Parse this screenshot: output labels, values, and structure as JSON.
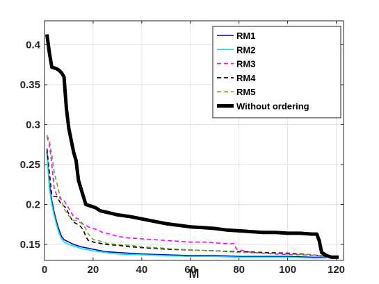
{
  "chart_data": {
    "type": "line",
    "title": "",
    "xlabel": "M",
    "ylabel": "",
    "xlim": [
      0,
      123
    ],
    "ylim": [
      0.13,
      0.43
    ],
    "xticks": [
      0,
      20,
      40,
      60,
      80,
      100,
      120
    ],
    "yticks": [
      0.15,
      0.2,
      0.25,
      0.3,
      0.35,
      0.4
    ],
    "ytick_labels": [
      "0.15",
      "0.2",
      "0.25",
      "0.3",
      "0.35",
      "0.4"
    ],
    "grid": true,
    "legend_placement": "top-right",
    "series": [
      {
        "name": "RM1",
        "color": "#0000cc",
        "dash": "solid",
        "width": "normal",
        "points": [
          [
            1,
            0.266
          ],
          [
            2,
            0.225
          ],
          [
            3,
            0.205
          ],
          [
            4,
            0.19
          ],
          [
            5,
            0.178
          ],
          [
            6,
            0.168
          ],
          [
            7,
            0.16
          ],
          [
            8,
            0.156
          ],
          [
            10,
            0.153
          ],
          [
            12,
            0.15
          ],
          [
            15,
            0.147
          ],
          [
            20,
            0.144
          ],
          [
            25,
            0.141
          ],
          [
            30,
            0.14
          ],
          [
            40,
            0.138
          ],
          [
            50,
            0.137
          ],
          [
            60,
            0.136
          ],
          [
            70,
            0.136
          ],
          [
            80,
            0.135
          ],
          [
            90,
            0.135
          ],
          [
            100,
            0.135
          ],
          [
            110,
            0.134
          ],
          [
            116,
            0.134
          ]
        ]
      },
      {
        "name": "RM2",
        "color": "#00e5e5",
        "dash": "solid",
        "width": "normal",
        "points": [
          [
            1,
            0.262
          ],
          [
            2,
            0.22
          ],
          [
            3,
            0.2
          ],
          [
            4,
            0.186
          ],
          [
            5,
            0.174
          ],
          [
            6,
            0.164
          ],
          [
            7,
            0.157
          ],
          [
            8,
            0.153
          ],
          [
            10,
            0.15
          ],
          [
            12,
            0.148
          ],
          [
            15,
            0.145
          ],
          [
            20,
            0.142
          ],
          [
            25,
            0.14
          ],
          [
            30,
            0.138
          ],
          [
            40,
            0.137
          ],
          [
            50,
            0.136
          ],
          [
            60,
            0.135
          ],
          [
            70,
            0.135
          ],
          [
            80,
            0.134
          ],
          [
            90,
            0.134
          ],
          [
            100,
            0.134
          ],
          [
            110,
            0.133
          ],
          [
            116,
            0.133
          ]
        ]
      },
      {
        "name": "RM3",
        "color": "#ff00ff",
        "dash": "dashed",
        "width": "normal",
        "points": [
          [
            1,
            0.285
          ],
          [
            2,
            0.275
          ],
          [
            3,
            0.25
          ],
          [
            4,
            0.22
          ],
          [
            5,
            0.212
          ],
          [
            6,
            0.21
          ],
          [
            7,
            0.205
          ],
          [
            8,
            0.205
          ],
          [
            9,
            0.2
          ],
          [
            10,
            0.195
          ],
          [
            11,
            0.19
          ],
          [
            12,
            0.185
          ],
          [
            13,
            0.183
          ],
          [
            14,
            0.182
          ],
          [
            15,
            0.178
          ],
          [
            16,
            0.175
          ],
          [
            17,
            0.174
          ],
          [
            18,
            0.172
          ],
          [
            20,
            0.17
          ],
          [
            22,
            0.168
          ],
          [
            24,
            0.165
          ],
          [
            27,
            0.163
          ],
          [
            30,
            0.16
          ],
          [
            35,
            0.158
          ],
          [
            40,
            0.157
          ],
          [
            45,
            0.156
          ],
          [
            50,
            0.155
          ],
          [
            55,
            0.154
          ],
          [
            60,
            0.153
          ],
          [
            65,
            0.153
          ],
          [
            70,
            0.152
          ],
          [
            75,
            0.151
          ],
          [
            78,
            0.151
          ],
          [
            79,
            0.144
          ],
          [
            85,
            0.14
          ],
          [
            95,
            0.138
          ],
          [
            105,
            0.137
          ],
          [
            113,
            0.136
          ],
          [
            116,
            0.134
          ]
        ]
      },
      {
        "name": "RM4",
        "color": "#000000",
        "dash": "dashed",
        "width": "normal",
        "points": [
          [
            1,
            0.27
          ],
          [
            2,
            0.24
          ],
          [
            3,
            0.212
          ],
          [
            4,
            0.21
          ],
          [
            5,
            0.21
          ],
          [
            6,
            0.205
          ],
          [
            7,
            0.2
          ],
          [
            8,
            0.198
          ],
          [
            9,
            0.195
          ],
          [
            10,
            0.188
          ],
          [
            11,
            0.182
          ],
          [
            12,
            0.178
          ],
          [
            13,
            0.176
          ],
          [
            14,
            0.175
          ],
          [
            15,
            0.172
          ],
          [
            16,
            0.168
          ],
          [
            17,
            0.16
          ],
          [
            18,
            0.155
          ],
          [
            19,
            0.155
          ],
          [
            20,
            0.153
          ],
          [
            22,
            0.152
          ],
          [
            25,
            0.15
          ],
          [
            30,
            0.149
          ],
          [
            35,
            0.147
          ],
          [
            40,
            0.146
          ],
          [
            50,
            0.144
          ],
          [
            60,
            0.143
          ],
          [
            70,
            0.142
          ],
          [
            80,
            0.141
          ],
          [
            90,
            0.14
          ],
          [
            100,
            0.139
          ],
          [
            110,
            0.137
          ],
          [
            116,
            0.135
          ]
        ]
      },
      {
        "name": "RM5",
        "color": "#66aa22",
        "dash": "dashed",
        "width": "normal",
        "points": [
          [
            1,
            0.287
          ],
          [
            2,
            0.28
          ],
          [
            3,
            0.262
          ],
          [
            4,
            0.24
          ],
          [
            5,
            0.228
          ],
          [
            6,
            0.215
          ],
          [
            7,
            0.205
          ],
          [
            8,
            0.195
          ],
          [
            9,
            0.19
          ],
          [
            10,
            0.186
          ],
          [
            11,
            0.182
          ],
          [
            12,
            0.18
          ],
          [
            13,
            0.18
          ],
          [
            14,
            0.178
          ],
          [
            15,
            0.177
          ],
          [
            16,
            0.174
          ],
          [
            17,
            0.17
          ],
          [
            18,
            0.163
          ],
          [
            19,
            0.16
          ],
          [
            20,
            0.156
          ],
          [
            22,
            0.155
          ],
          [
            24,
            0.153
          ],
          [
            26,
            0.151
          ],
          [
            30,
            0.15
          ],
          [
            35,
            0.149
          ],
          [
            40,
            0.147
          ],
          [
            50,
            0.145
          ],
          [
            60,
            0.143
          ],
          [
            70,
            0.142
          ],
          [
            80,
            0.14
          ],
          [
            90,
            0.139
          ],
          [
            100,
            0.138
          ],
          [
            110,
            0.137
          ],
          [
            116,
            0.134
          ]
        ]
      },
      {
        "name": "Without ordering",
        "color": "#000000",
        "dash": "solid",
        "width": "thick",
        "points": [
          [
            1,
            0.413
          ],
          [
            2,
            0.39
          ],
          [
            3,
            0.372
          ],
          [
            5,
            0.37
          ],
          [
            6,
            0.368
          ],
          [
            7,
            0.365
          ],
          [
            8,
            0.36
          ],
          [
            9,
            0.32
          ],
          [
            10,
            0.295
          ],
          [
            11,
            0.28
          ],
          [
            12,
            0.265
          ],
          [
            13,
            0.255
          ],
          [
            14,
            0.23
          ],
          [
            15,
            0.22
          ],
          [
            16,
            0.21
          ],
          [
            17,
            0.2
          ],
          [
            19,
            0.198
          ],
          [
            21,
            0.196
          ],
          [
            23,
            0.192
          ],
          [
            26,
            0.19
          ],
          [
            30,
            0.187
          ],
          [
            35,
            0.185
          ],
          [
            40,
            0.182
          ],
          [
            45,
            0.179
          ],
          [
            50,
            0.176
          ],
          [
            55,
            0.174
          ],
          [
            60,
            0.172
          ],
          [
            65,
            0.171
          ],
          [
            70,
            0.17
          ],
          [
            75,
            0.168
          ],
          [
            80,
            0.167
          ],
          [
            85,
            0.166
          ],
          [
            90,
            0.165
          ],
          [
            95,
            0.165
          ],
          [
            100,
            0.164
          ],
          [
            105,
            0.164
          ],
          [
            110,
            0.163
          ],
          [
            112,
            0.163
          ],
          [
            113,
            0.155
          ],
          [
            114,
            0.14
          ],
          [
            116,
            0.136
          ],
          [
            118,
            0.134
          ],
          [
            121,
            0.134
          ]
        ]
      }
    ]
  }
}
